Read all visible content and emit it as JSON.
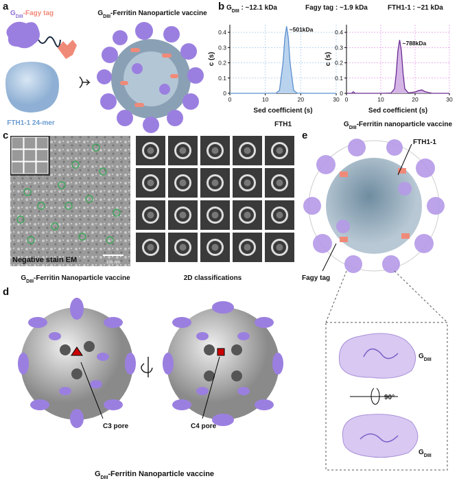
{
  "panels": {
    "a": "a",
    "b": "b",
    "c": "c",
    "d": "d",
    "e": "e"
  },
  "panel_a": {
    "fusion_label": [
      "G",
      "DIII",
      "-Fagy tag"
    ],
    "vaccine_label": [
      "G",
      "DIII",
      "-Ferritin Nanoparticle vaccine"
    ],
    "cage_label": "FTH1-1 24-mer"
  },
  "panel_b": {
    "masses": [
      [
        "G",
        "DIII",
        " : ~12.1 kDa"
      ],
      "Fagy tag : ~1.9 kDa",
      "FTH1-1 : ~21 kDa"
    ]
  },
  "chart_data": [
    {
      "type": "area",
      "subtitle": "FTH1",
      "xlabel": "Sed coefficient (s)",
      "ylabel": "c (s)",
      "x": [
        0,
        5,
        10,
        13,
        14,
        15,
        15.5,
        16,
        16.5,
        17,
        18,
        19,
        22,
        25,
        30
      ],
      "values": [
        0,
        0,
        0,
        0.001,
        0.019,
        0.2,
        0.36,
        0.44,
        0.36,
        0.2,
        0.019,
        0.001,
        0,
        0,
        0
      ],
      "color": "#5b8fcf",
      "fill_color": "#b9d3ee",
      "annotation": "~501kDa",
      "xlim": [
        0,
        30
      ],
      "ylim": [
        0,
        0.45
      ],
      "xticks": [
        0,
        10,
        20,
        30
      ],
      "yticks": [
        0,
        0.1,
        0.2,
        0.3,
        0.4
      ],
      "grid": true,
      "grid_color": "#8fbde6"
    },
    {
      "type": "area",
      "subtitle": [
        "G",
        "DIII",
        "-Ferritin nanoparticle vaccine"
      ],
      "xlabel": "Sed coefficient (s)",
      "ylabel": "c (s)",
      "x": [
        0,
        1.5,
        2,
        2.5,
        5,
        10,
        13,
        14,
        14.5,
        15,
        15.5,
        16,
        16.5,
        17,
        18,
        20,
        21,
        22,
        23,
        25,
        30
      ],
      "values": [
        0,
        0,
        0.01,
        0,
        0,
        0,
        0.002,
        0.03,
        0.13,
        0.28,
        0.35,
        0.28,
        0.13,
        0.03,
        0.003,
        0.008,
        0.018,
        0.022,
        0.01,
        0,
        0
      ],
      "color": "#6a2a91",
      "fill_color": "#d4b5e6",
      "annotation": "~788kDa",
      "xlim": [
        0,
        30
      ],
      "ylim": [
        0,
        0.45
      ],
      "xticks": [
        0,
        10,
        20,
        30
      ],
      "yticks": [
        0,
        0.1,
        0.2,
        0.3,
        0.4
      ],
      "grid": true,
      "grid_color": "#e07fe0"
    }
  ],
  "panel_c": {
    "em_label": "Negative stain EM",
    "scale_bar": "100 nm",
    "left_caption": [
      "G",
      "DIII",
      "-Ferritin  Nanoparticle vaccine"
    ],
    "right_caption": "2D classifications"
  },
  "panel_d": {
    "c3": "C3 pore",
    "c4": "C4 pore",
    "caption": [
      "G",
      "DIII",
      "-Ferritin Nanoparticle vaccine"
    ]
  },
  "panel_e": {
    "fth1": "FTH1-1",
    "fagy": "Fagy tag",
    "gdiii_top": [
      "G",
      "DIII"
    ],
    "rotation": "90°",
    "gdiii_bottom": [
      "G",
      "DIII"
    ]
  }
}
